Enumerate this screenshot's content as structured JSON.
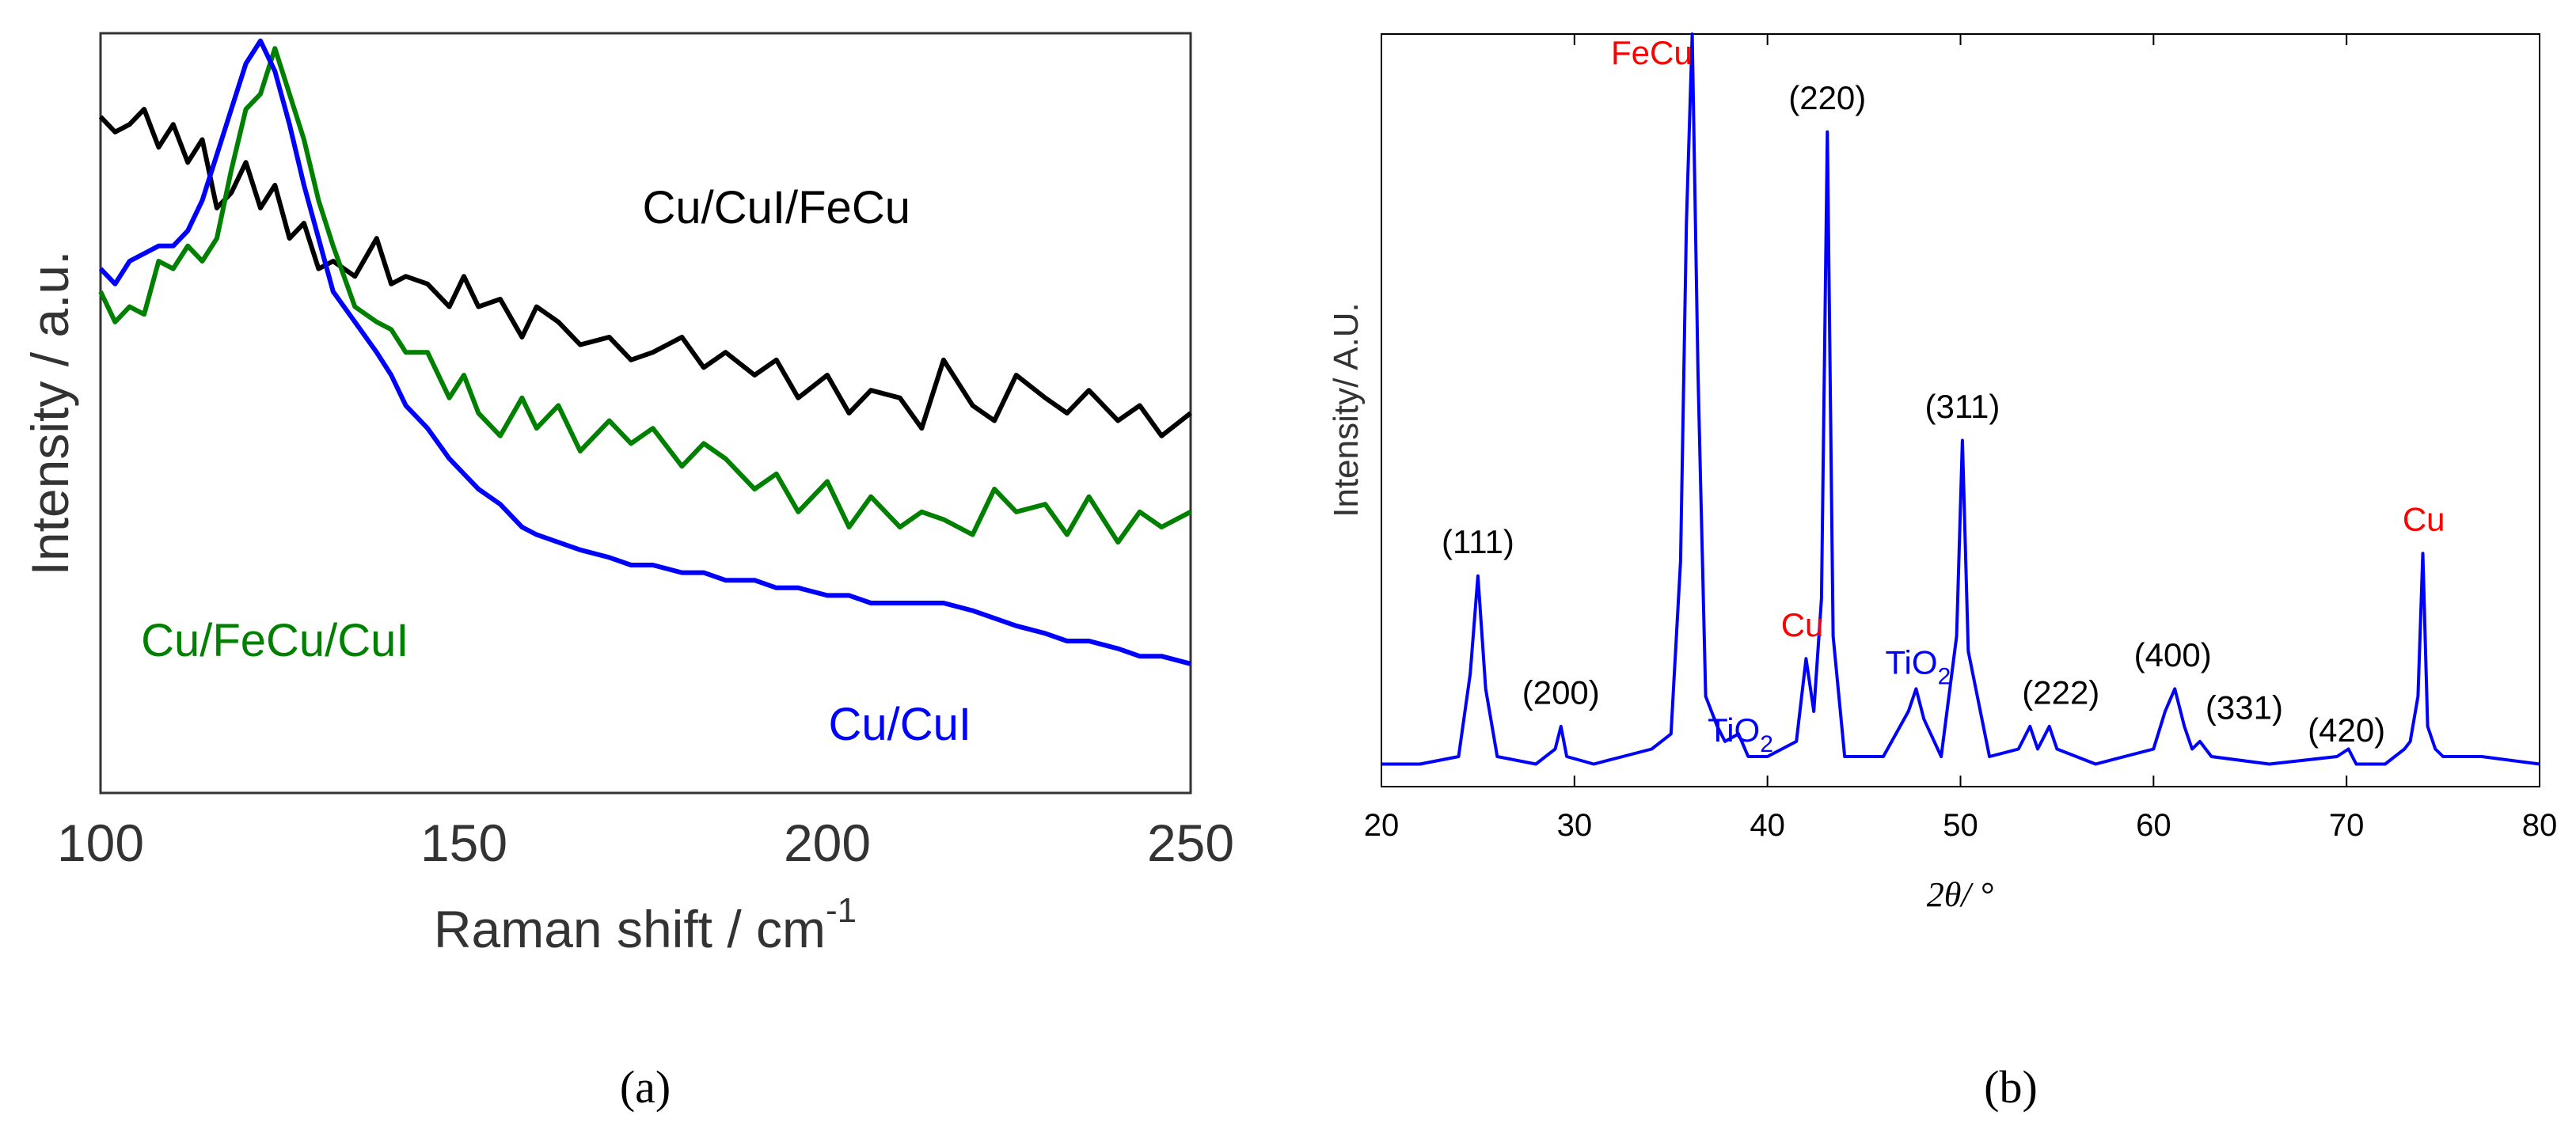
{
  "chart_data": [
    {
      "type": "line",
      "panel": "(a)",
      "xlabel": "Raman shift / cm",
      "xlabel_sup": "-1",
      "ylabel": "Intensity / a.u.",
      "xlim": [
        100,
        250
      ],
      "ylim": [
        0,
        1
      ],
      "x_ticks": [
        100,
        150,
        200,
        250
      ],
      "y_ticks_shown": false,
      "grid": false,
      "series": [
        {
          "name": "Cu/CuI/FeCu",
          "color": "#000000",
          "x": [
            100,
            102,
            104,
            106,
            108,
            110,
            112,
            114,
            116,
            118,
            120,
            122,
            124,
            126,
            128,
            130,
            132,
            135,
            138,
            140,
            142,
            145,
            148,
            150,
            152,
            155,
            158,
            160,
            163,
            166,
            170,
            173,
            176,
            180,
            183,
            186,
            190,
            193,
            196,
            200,
            203,
            206,
            210,
            213,
            216,
            220,
            223,
            226,
            230,
            233,
            236,
            240,
            243,
            246,
            250
          ],
          "values": [
            0.89,
            0.87,
            0.88,
            0.9,
            0.85,
            0.88,
            0.83,
            0.86,
            0.77,
            0.79,
            0.83,
            0.77,
            0.8,
            0.73,
            0.75,
            0.69,
            0.7,
            0.68,
            0.73,
            0.67,
            0.68,
            0.67,
            0.64,
            0.68,
            0.64,
            0.65,
            0.6,
            0.64,
            0.62,
            0.59,
            0.6,
            0.57,
            0.58,
            0.6,
            0.56,
            0.58,
            0.55,
            0.57,
            0.52,
            0.55,
            0.5,
            0.53,
            0.52,
            0.48,
            0.57,
            0.51,
            0.49,
            0.55,
            0.52,
            0.5,
            0.53,
            0.49,
            0.51,
            0.47,
            0.5
          ]
        },
        {
          "name": "Cu/FeCu/CuI",
          "color": "#008000",
          "x": [
            100,
            102,
            104,
            106,
            108,
            110,
            112,
            114,
            116,
            118,
            120,
            122,
            124,
            126,
            128,
            130,
            132,
            135,
            138,
            140,
            142,
            145,
            148,
            150,
            152,
            155,
            158,
            160,
            163,
            166,
            170,
            173,
            176,
            180,
            183,
            186,
            190,
            193,
            196,
            200,
            203,
            206,
            210,
            213,
            216,
            220,
            223,
            226,
            230,
            233,
            236,
            240,
            243,
            246,
            250
          ],
          "values": [
            0.66,
            0.62,
            0.64,
            0.63,
            0.7,
            0.69,
            0.72,
            0.7,
            0.73,
            0.82,
            0.9,
            0.92,
            0.98,
            0.92,
            0.86,
            0.78,
            0.72,
            0.64,
            0.62,
            0.61,
            0.58,
            0.58,
            0.52,
            0.55,
            0.5,
            0.47,
            0.52,
            0.48,
            0.51,
            0.45,
            0.49,
            0.46,
            0.48,
            0.43,
            0.46,
            0.44,
            0.4,
            0.42,
            0.37,
            0.41,
            0.35,
            0.39,
            0.35,
            0.37,
            0.36,
            0.34,
            0.4,
            0.37,
            0.38,
            0.34,
            0.39,
            0.33,
            0.37,
            0.35,
            0.37
          ]
        },
        {
          "name": "Cu/CuI",
          "color": "#0000ff",
          "x": [
            100,
            102,
            104,
            106,
            108,
            110,
            112,
            114,
            116,
            118,
            120,
            122,
            124,
            126,
            128,
            130,
            132,
            135,
            138,
            140,
            142,
            145,
            148,
            150,
            152,
            155,
            158,
            160,
            163,
            166,
            170,
            173,
            176,
            180,
            183,
            186,
            190,
            193,
            196,
            200,
            203,
            206,
            210,
            213,
            216,
            220,
            223,
            226,
            230,
            233,
            236,
            240,
            243,
            246,
            250
          ],
          "values": [
            0.69,
            0.67,
            0.7,
            0.71,
            0.72,
            0.72,
            0.74,
            0.78,
            0.84,
            0.9,
            0.96,
            0.99,
            0.95,
            0.88,
            0.8,
            0.73,
            0.66,
            0.62,
            0.58,
            0.55,
            0.51,
            0.48,
            0.44,
            0.42,
            0.4,
            0.38,
            0.35,
            0.34,
            0.33,
            0.32,
            0.31,
            0.3,
            0.3,
            0.29,
            0.29,
            0.28,
            0.28,
            0.27,
            0.27,
            0.26,
            0.26,
            0.25,
            0.25,
            0.25,
            0.25,
            0.24,
            0.23,
            0.22,
            0.21,
            0.2,
            0.2,
            0.19,
            0.18,
            0.18,
            0.17
          ]
        }
      ],
      "annotations": [
        {
          "text": "Cu/CuI/FeCu",
          "x": 193,
          "y": 0.75,
          "color": "#000000"
        },
        {
          "text": "Cu/FeCu/CuI",
          "x": 124,
          "y": 0.18,
          "color": "#008000"
        },
        {
          "text": "Cu/CuI",
          "x": 210,
          "y": 0.07,
          "color": "#0000ff"
        }
      ]
    },
    {
      "type": "line",
      "panel": "(b)",
      "xlabel": "2θ/ °",
      "ylabel": "Intensity/ A.U.",
      "xlim": [
        20,
        80
      ],
      "ylim": [
        0,
        1
      ],
      "x_ticks": [
        20,
        30,
        40,
        50,
        60,
        70,
        80
      ],
      "y_ticks_shown": false,
      "grid": false,
      "series": [
        {
          "name": "XRD pattern",
          "color": "#0000ff",
          "x": [
            20,
            22,
            24,
            24.6,
            25,
            25.4,
            26,
            28,
            29,
            29.3,
            29.6,
            31,
            32.5,
            34,
            35,
            35.5,
            35.8,
            36.1,
            36.4,
            36.8,
            37.4,
            37.8,
            38.5,
            39,
            40,
            41.5,
            42,
            42.4,
            42.8,
            43.1,
            43.4,
            44,
            46,
            47.3,
            47.7,
            48.1,
            49,
            49.8,
            50.1,
            50.4,
            51.5,
            53,
            53.6,
            54,
            54.6,
            55,
            57,
            60,
            60.6,
            61.1,
            61.6,
            62,
            62.4,
            63,
            66,
            69.5,
            70.1,
            70.5,
            72,
            73,
            73.3,
            73.7,
            73.95,
            74.2,
            74.6,
            75,
            77,
            80
          ],
          "values": [
            0.03,
            0.03,
            0.04,
            0.15,
            0.28,
            0.13,
            0.04,
            0.03,
            0.05,
            0.08,
            0.04,
            0.03,
            0.04,
            0.05,
            0.07,
            0.3,
            0.75,
            1.0,
            0.55,
            0.12,
            0.08,
            0.06,
            0.07,
            0.04,
            0.04,
            0.06,
            0.17,
            0.1,
            0.25,
            0.87,
            0.2,
            0.04,
            0.04,
            0.1,
            0.13,
            0.09,
            0.04,
            0.2,
            0.46,
            0.18,
            0.04,
            0.05,
            0.08,
            0.05,
            0.08,
            0.05,
            0.03,
            0.05,
            0.1,
            0.13,
            0.08,
            0.05,
            0.06,
            0.04,
            0.03,
            0.04,
            0.05,
            0.03,
            0.03,
            0.05,
            0.06,
            0.12,
            0.31,
            0.08,
            0.05,
            0.04,
            0.04,
            0.03
          ]
        }
      ],
      "annotations": [
        {
          "text": "(111)",
          "x": 25,
          "y": 0.31,
          "color": "#000000"
        },
        {
          "text": "(200)",
          "x": 29.3,
          "y": 0.11,
          "color": "#000000"
        },
        {
          "text": "FeCu",
          "x": 34,
          "y": 0.96,
          "color": "#ff0000"
        },
        {
          "text": "TiO",
          "sub": "2",
          "x": 38.6,
          "y": 0.06,
          "color": "#0000ff"
        },
        {
          "text": "Cu",
          "x": 41.8,
          "y": 0.2,
          "color": "#ff0000"
        },
        {
          "text": "(220)",
          "x": 43.1,
          "y": 0.9,
          "color": "#000000"
        },
        {
          "text": "TiO",
          "sub": "2",
          "x": 47.8,
          "y": 0.15,
          "color": "#0000ff"
        },
        {
          "text": "(311)",
          "x": 50.1,
          "y": 0.49,
          "color": "#000000"
        },
        {
          "text": "(222)",
          "x": 55.2,
          "y": 0.11,
          "color": "#000000"
        },
        {
          "text": "(400)",
          "x": 61.0,
          "y": 0.16,
          "color": "#000000"
        },
        {
          "text": "(331)",
          "x": 64.7,
          "y": 0.09,
          "color": "#000000"
        },
        {
          "text": "(420)",
          "x": 70.0,
          "y": 0.06,
          "color": "#000000"
        },
        {
          "text": "Cu",
          "x": 74.0,
          "y": 0.34,
          "color": "#ff0000"
        }
      ]
    }
  ],
  "captions": {
    "a": "(a)",
    "b": "(b)"
  }
}
